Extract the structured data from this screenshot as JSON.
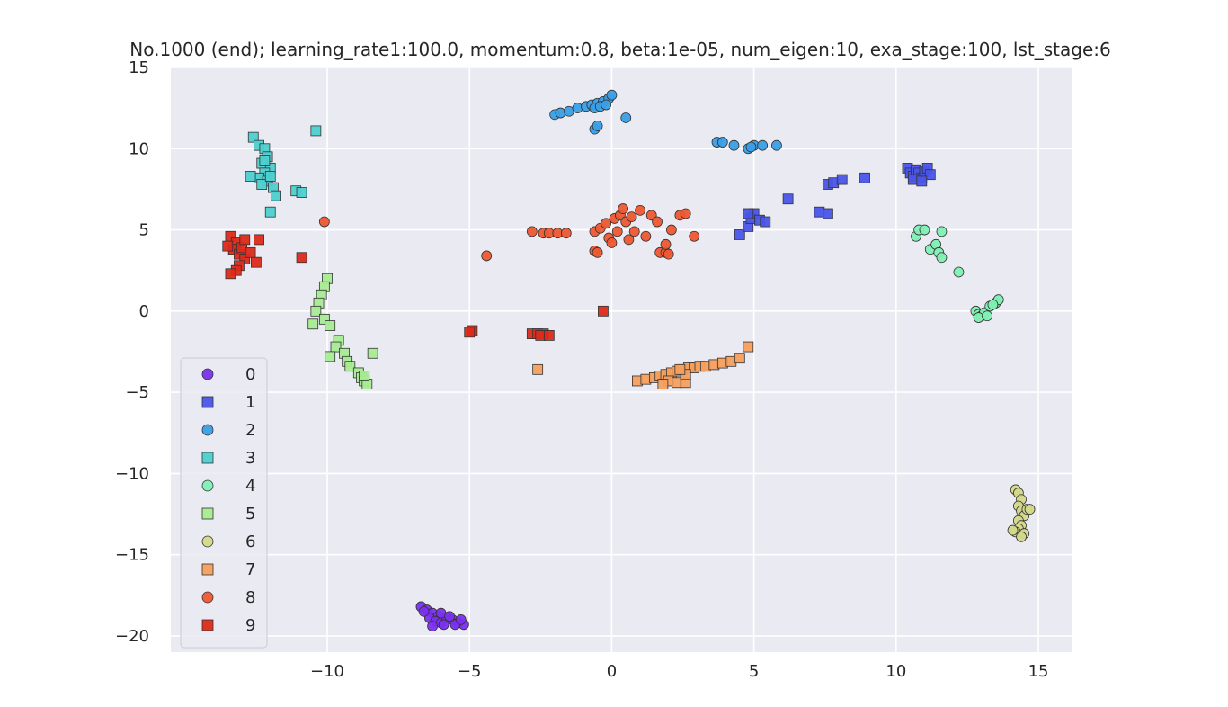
{
  "chart_data": {
    "type": "scatter",
    "title": "No.1000 (end); learning_rate1:100.0, momentum:0.8, beta:1e-05, num_eigen:10, exa_stage:100, lst_stage:6",
    "xlabel": "",
    "ylabel": "",
    "xlim": [
      -15.5,
      16.2
    ],
    "ylim": [
      -21,
      15
    ],
    "xticks": [
      -10,
      -5,
      0,
      5,
      10,
      15
    ],
    "yticks": [
      15,
      10,
      5,
      0,
      -5,
      -10,
      -15,
      -20
    ],
    "xtick_labels": [
      "−10",
      "−5",
      "0",
      "5",
      "10",
      "15"
    ],
    "ytick_labels": [
      "15",
      "10",
      "5",
      "0",
      "−5",
      "−10",
      "−15",
      "−20"
    ],
    "grid": true,
    "legend_position": "lower-left",
    "series": [
      {
        "name": "0",
        "marker": "circle",
        "color": "#7b2ff0",
        "points": [
          [
            -6.7,
            -18.2
          ],
          [
            -6.5,
            -18.4
          ],
          [
            -6.3,
            -18.6
          ],
          [
            -6.1,
            -18.8
          ],
          [
            -6.4,
            -18.9
          ],
          [
            -6.2,
            -19.1
          ],
          [
            -6.0,
            -19.2
          ],
          [
            -5.8,
            -18.9
          ],
          [
            -5.6,
            -19.0
          ],
          [
            -5.4,
            -19.2
          ],
          [
            -5.2,
            -19.3
          ],
          [
            -5.9,
            -19.3
          ],
          [
            -6.3,
            -19.4
          ],
          [
            -5.5,
            -19.3
          ],
          [
            -6.0,
            -18.6
          ],
          [
            -5.7,
            -18.8
          ],
          [
            -5.3,
            -19.0
          ],
          [
            -6.6,
            -18.5
          ]
        ]
      },
      {
        "name": "1",
        "marker": "square",
        "color": "#4a55e8",
        "points": [
          [
            4.5,
            4.7
          ],
          [
            4.8,
            5.2
          ],
          [
            4.9,
            5.7
          ],
          [
            5.0,
            6.0
          ],
          [
            5.2,
            5.6
          ],
          [
            5.4,
            5.5
          ],
          [
            4.8,
            6.0
          ],
          [
            6.2,
            6.9
          ],
          [
            7.3,
            6.1
          ],
          [
            7.6,
            6.0
          ],
          [
            7.6,
            7.8
          ],
          [
            7.8,
            7.9
          ],
          [
            8.1,
            8.1
          ],
          [
            8.9,
            8.2
          ],
          [
            10.4,
            8.8
          ],
          [
            10.5,
            8.5
          ],
          [
            10.6,
            8.3
          ],
          [
            10.7,
            8.7
          ],
          [
            10.8,
            8.5
          ],
          [
            10.9,
            8.2
          ],
          [
            11.0,
            8.6
          ],
          [
            11.1,
            8.8
          ],
          [
            11.2,
            8.4
          ],
          [
            10.6,
            8.1
          ],
          [
            10.9,
            8.0
          ]
        ]
      },
      {
        "name": "2",
        "marker": "circle",
        "color": "#3a9fe6",
        "points": [
          [
            -2.0,
            12.1
          ],
          [
            -1.8,
            12.2
          ],
          [
            -1.5,
            12.3
          ],
          [
            -1.2,
            12.5
          ],
          [
            -0.9,
            12.6
          ],
          [
            -0.7,
            12.7
          ],
          [
            -0.5,
            12.8
          ],
          [
            -0.3,
            12.9
          ],
          [
            -0.1,
            13.1
          ],
          [
            0.0,
            13.3
          ],
          [
            -0.6,
            12.5
          ],
          [
            -0.4,
            12.6
          ],
          [
            -0.2,
            12.7
          ],
          [
            -0.6,
            11.2
          ],
          [
            -0.5,
            11.4
          ],
          [
            0.5,
            11.9
          ],
          [
            3.7,
            10.4
          ],
          [
            3.9,
            10.4
          ],
          [
            4.3,
            10.2
          ],
          [
            4.8,
            10.0
          ],
          [
            5.0,
            10.2
          ],
          [
            5.3,
            10.2
          ],
          [
            5.8,
            10.2
          ],
          [
            4.9,
            10.1
          ]
        ]
      },
      {
        "name": "3",
        "marker": "square",
        "color": "#4ed0d0",
        "points": [
          [
            -12.6,
            10.7
          ],
          [
            -12.4,
            10.2
          ],
          [
            -12.2,
            10.0
          ],
          [
            -12.1,
            9.5
          ],
          [
            -12.3,
            9.1
          ],
          [
            -12.0,
            8.8
          ],
          [
            -12.2,
            8.5
          ],
          [
            -12.4,
            8.2
          ],
          [
            -12.1,
            8.0
          ],
          [
            -11.9,
            7.6
          ],
          [
            -11.8,
            7.1
          ],
          [
            -12.7,
            8.3
          ],
          [
            -12.3,
            7.8
          ],
          [
            -12.0,
            6.1
          ],
          [
            -11.1,
            7.4
          ],
          [
            -10.9,
            7.3
          ],
          [
            -10.4,
            11.1
          ],
          [
            -12.2,
            9.3
          ],
          [
            -12.0,
            8.3
          ]
        ]
      },
      {
        "name": "4",
        "marker": "circle",
        "color": "#7ff0b4",
        "points": [
          [
            10.7,
            4.6
          ],
          [
            10.8,
            5.0
          ],
          [
            11.0,
            5.0
          ],
          [
            11.2,
            3.8
          ],
          [
            11.4,
            4.1
          ],
          [
            11.5,
            3.6
          ],
          [
            11.6,
            3.3
          ],
          [
            11.6,
            4.9
          ],
          [
            12.2,
            2.4
          ],
          [
            12.8,
            0.0
          ],
          [
            12.9,
            -0.2
          ],
          [
            13.0,
            -0.3
          ],
          [
            13.1,
            -0.1
          ],
          [
            13.3,
            0.3
          ],
          [
            13.5,
            0.5
          ],
          [
            13.6,
            0.7
          ],
          [
            12.9,
            -0.4
          ],
          [
            13.2,
            -0.3
          ],
          [
            13.4,
            0.4
          ]
        ]
      },
      {
        "name": "5",
        "marker": "square",
        "color": "#a6ec92",
        "points": [
          [
            -10.0,
            2.0
          ],
          [
            -10.1,
            1.5
          ],
          [
            -10.2,
            1.0
          ],
          [
            -10.3,
            0.5
          ],
          [
            -10.4,
            0.0
          ],
          [
            -10.1,
            -0.5
          ],
          [
            -10.5,
            -0.8
          ],
          [
            -9.9,
            -0.9
          ],
          [
            -9.6,
            -1.8
          ],
          [
            -9.7,
            -2.2
          ],
          [
            -9.4,
            -2.6
          ],
          [
            -9.9,
            -2.8
          ],
          [
            -9.3,
            -3.1
          ],
          [
            -9.2,
            -3.4
          ],
          [
            -8.9,
            -3.8
          ],
          [
            -8.8,
            -4.1
          ],
          [
            -8.7,
            -4.3
          ],
          [
            -8.6,
            -4.5
          ],
          [
            -8.7,
            -4.0
          ],
          [
            -8.4,
            -2.6
          ]
        ]
      },
      {
        "name": "6",
        "marker": "circle",
        "color": "#d4d98a",
        "points": [
          [
            14.2,
            -11.0
          ],
          [
            14.3,
            -11.2
          ],
          [
            14.4,
            -11.6
          ],
          [
            14.3,
            -12.0
          ],
          [
            14.4,
            -12.3
          ],
          [
            14.5,
            -12.6
          ],
          [
            14.3,
            -12.9
          ],
          [
            14.4,
            -13.2
          ],
          [
            14.3,
            -13.4
          ],
          [
            14.2,
            -13.6
          ],
          [
            14.5,
            -13.7
          ],
          [
            14.4,
            -13.9
          ],
          [
            14.6,
            -12.2
          ],
          [
            14.7,
            -12.2
          ],
          [
            14.1,
            -13.5
          ]
        ]
      },
      {
        "name": "7",
        "marker": "square",
        "color": "#f5a05e",
        "points": [
          [
            0.9,
            -4.3
          ],
          [
            1.2,
            -4.2
          ],
          [
            1.5,
            -4.1
          ],
          [
            1.7,
            -4.0
          ],
          [
            1.9,
            -3.9
          ],
          [
            2.1,
            -3.8
          ],
          [
            2.3,
            -3.7
          ],
          [
            2.5,
            -3.6
          ],
          [
            2.7,
            -3.5
          ],
          [
            2.9,
            -3.5
          ],
          [
            3.1,
            -3.4
          ],
          [
            3.3,
            -3.4
          ],
          [
            3.6,
            -3.3
          ],
          [
            3.9,
            -3.2
          ],
          [
            4.2,
            -3.1
          ],
          [
            4.5,
            -2.9
          ],
          [
            4.8,
            -2.2
          ],
          [
            2.0,
            -4.3
          ],
          [
            1.8,
            -4.5
          ],
          [
            2.3,
            -4.4
          ],
          [
            2.6,
            -4.4
          ],
          [
            2.6,
            -3.9
          ],
          [
            2.4,
            -3.6
          ],
          [
            -2.6,
            -3.6
          ]
        ]
      },
      {
        "name": "8",
        "marker": "circle",
        "color": "#ee5830",
        "points": [
          [
            -10.1,
            5.5
          ],
          [
            -4.4,
            3.4
          ],
          [
            -2.8,
            4.9
          ],
          [
            -2.4,
            4.8
          ],
          [
            -2.2,
            4.8
          ],
          [
            -1.9,
            4.8
          ],
          [
            -1.6,
            4.8
          ],
          [
            -0.6,
            4.9
          ],
          [
            -0.6,
            3.7
          ],
          [
            -0.4,
            5.1
          ],
          [
            -0.2,
            5.4
          ],
          [
            -0.1,
            4.5
          ],
          [
            0.0,
            4.2
          ],
          [
            0.1,
            5.7
          ],
          [
            0.2,
            4.9
          ],
          [
            0.3,
            5.9
          ],
          [
            0.4,
            6.3
          ],
          [
            0.5,
            5.5
          ],
          [
            0.6,
            4.4
          ],
          [
            0.7,
            5.8
          ],
          [
            0.8,
            4.9
          ],
          [
            1.0,
            6.2
          ],
          [
            1.2,
            4.6
          ],
          [
            1.4,
            5.9
          ],
          [
            1.6,
            5.5
          ],
          [
            1.7,
            3.6
          ],
          [
            1.9,
            3.6
          ],
          [
            1.9,
            4.1
          ],
          [
            2.0,
            3.5
          ],
          [
            2.1,
            5.0
          ],
          [
            2.4,
            5.9
          ],
          [
            2.6,
            6.0
          ],
          [
            2.9,
            4.6
          ],
          [
            -0.5,
            3.6
          ]
        ]
      },
      {
        "name": "9",
        "marker": "square",
        "color": "#dd2a1a",
        "points": [
          [
            -13.4,
            4.6
          ],
          [
            -13.2,
            4.2
          ],
          [
            -13.3,
            3.8
          ],
          [
            -13.1,
            3.5
          ],
          [
            -13.0,
            3.9
          ],
          [
            -12.9,
            3.2
          ],
          [
            -13.1,
            2.8
          ],
          [
            -13.2,
            2.5
          ],
          [
            -13.4,
            2.3
          ],
          [
            -12.7,
            3.6
          ],
          [
            -12.5,
            3.0
          ],
          [
            -12.4,
            4.4
          ],
          [
            -13.5,
            4.0
          ],
          [
            -12.9,
            4.4
          ],
          [
            -10.9,
            3.3
          ],
          [
            -4.9,
            -1.2
          ],
          [
            -5.0,
            -1.3
          ],
          [
            -2.8,
            -1.4
          ],
          [
            -2.6,
            -1.4
          ],
          [
            -2.4,
            -1.4
          ],
          [
            -2.5,
            -1.5
          ],
          [
            -2.2,
            -1.5
          ],
          [
            -0.3,
            0.0
          ]
        ]
      }
    ]
  }
}
